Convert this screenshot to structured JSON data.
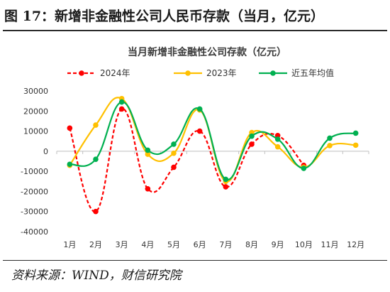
{
  "figure": {
    "title": "图 17：新增非金融性公司人民币存款（当月，亿元）",
    "source": "资料来源：WIND，财信研究院"
  },
  "chart_data": {
    "type": "line",
    "title": "当月新增非金融性公司存款（亿元）",
    "xlabel": "",
    "ylabel": "",
    "categories": [
      "1月",
      "2月",
      "3月",
      "4月",
      "5月",
      "6月",
      "7月",
      "8月",
      "9月",
      "10月",
      "11月",
      "12月"
    ],
    "ylim": [
      -40000,
      30000
    ],
    "yticks": [
      30000,
      20000,
      10000,
      0,
      -10000,
      -20000,
      -30000,
      -40000
    ],
    "legend_position": "top",
    "grid": false,
    "series": [
      {
        "name": "2024年",
        "color": "#ff0000",
        "style": "dashed",
        "values": [
          11500,
          -30000,
          21000,
          -18700,
          -8000,
          10000,
          -17700,
          3500,
          7800,
          -7000,
          null,
          null
        ]
      },
      {
        "name": "2023年",
        "color": "#ffc000",
        "style": "solid",
        "values": [
          -7000,
          13000,
          26200,
          -1500,
          -1000,
          20500,
          -15000,
          9300,
          2200,
          -8000,
          2800,
          3000
        ]
      },
      {
        "name": "近五年均值",
        "color": "#00b050",
        "style": "solid",
        "values": [
          -6500,
          -4000,
          24500,
          500,
          3500,
          21000,
          -14000,
          7500,
          6000,
          -8500,
          6500,
          9000
        ]
      }
    ]
  }
}
